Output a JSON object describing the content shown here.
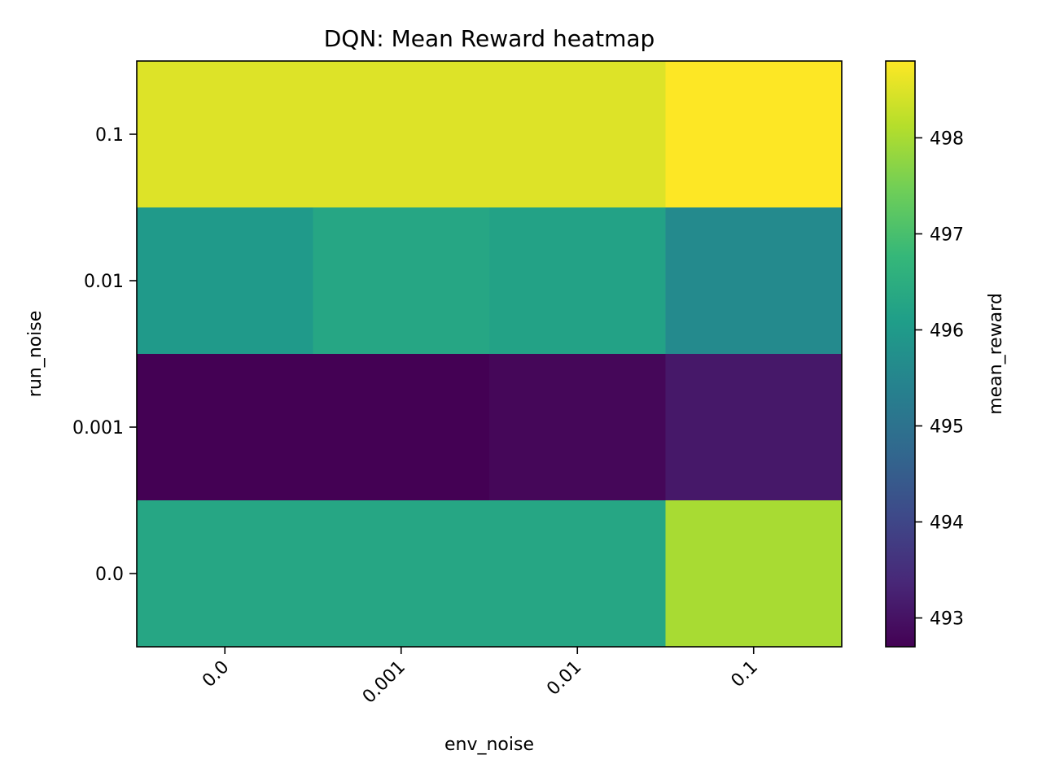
{
  "chart_data": {
    "type": "heatmap",
    "title": "DQN: Mean Reward heatmap",
    "xlabel": "env_noise",
    "ylabel": "run_noise",
    "x_categories": [
      "0.0",
      "0.001",
      "0.01",
      "0.1"
    ],
    "y_categories": [
      "0.1",
      "0.01",
      "0.001",
      "0.0"
    ],
    "values": [
      [
        498.5,
        498.5,
        498.5,
        498.8
      ],
      [
        496.0,
        496.3,
        496.2,
        495.6
      ],
      [
        492.7,
        492.7,
        492.8,
        493.1
      ],
      [
        496.3,
        496.3,
        496.3,
        498.0
      ]
    ],
    "colormap": "viridis",
    "colorbar": {
      "label": "mean_reward",
      "range": [
        492.7,
        498.8
      ],
      "ticks": [
        493,
        494,
        495,
        496,
        497,
        498
      ]
    }
  }
}
